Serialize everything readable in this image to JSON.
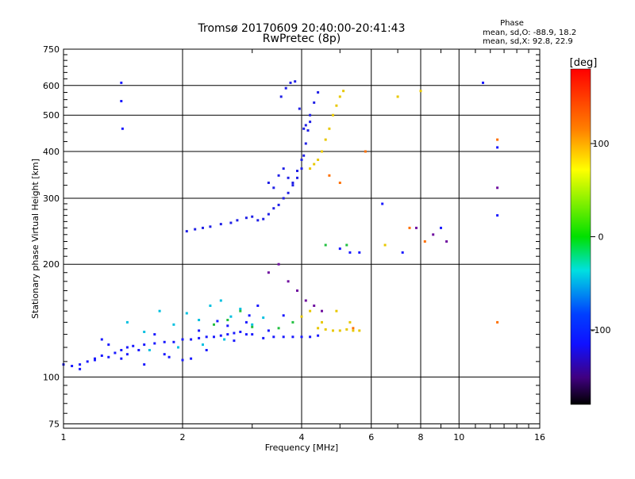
{
  "chart_data": {
    "type": "scatter",
    "title": "Tromsø 20170609 20:40:00-20:41:43",
    "subtitle": "RwPretec (8p)",
    "xlabel": "Frequency [MHz]",
    "ylabel": "Stationary phase Virtual Height [km]",
    "xscale": "log",
    "yscale": "log",
    "xlim": [
      1,
      16
    ],
    "ylim": [
      73,
      750
    ],
    "x_ticks": [
      1,
      2,
      4,
      6,
      8,
      10,
      16
    ],
    "x_tick_labels": [
      "1",
      "2",
      "4",
      "6",
      "8",
      "10",
      "16"
    ],
    "y_ticks": [
      75,
      100,
      200,
      300,
      400,
      500,
      600,
      750
    ],
    "y_tick_labels": [
      "75",
      "100",
      "200",
      "300",
      "400",
      "500",
      "600",
      "750"
    ],
    "grid": true,
    "info": {
      "heading": "Phase",
      "line_o": "mean, sd,O: -88.9, 18.2",
      "line_x": "mean, sd,X:  92.8, 22.9"
    },
    "colorbar": {
      "label": "[deg]",
      "range": [
        -180,
        180
      ],
      "ticks": [
        100,
        0,
        -100
      ],
      "tick_labels": [
        "100",
        "0",
        "-100"
      ]
    },
    "series": [
      {
        "name": "blue-low-E-trace",
        "color": "#1a1aff",
        "x": [
          1.0,
          1.05,
          1.1,
          1.15,
          1.2,
          1.25,
          1.3,
          1.35,
          1.4,
          1.45,
          1.5,
          1.6,
          1.7,
          1.8,
          1.9,
          2.0,
          2.1,
          2.2,
          2.3,
          2.4,
          2.5,
          2.6,
          2.7,
          2.8,
          2.9,
          3.0,
          3.2,
          3.4,
          3.6,
          3.8,
          4.0,
          4.2,
          4.4,
          1.1,
          1.2,
          1.3,
          1.45,
          1.55,
          1.7,
          1.85,
          2.0,
          2.2,
          2.45,
          2.7,
          2.95,
          3.3,
          3.6,
          1.25,
          1.4,
          1.6,
          1.8,
          2.1,
          2.3,
          2.6,
          2.9,
          3.1
        ],
        "values": [
          108,
          107,
          108,
          110,
          112,
          114,
          113,
          116,
          118,
          120,
          121,
          122,
          123,
          124,
          124,
          126,
          126,
          127,
          128,
          128,
          129,
          130,
          131,
          132,
          130,
          130,
          127,
          128,
          128,
          128,
          128,
          128,
          129,
          105,
          111,
          122,
          115,
          118,
          130,
          113,
          111,
          133,
          141,
          125,
          146,
          133,
          146,
          126,
          112,
          108,
          115,
          112,
          118,
          137,
          140,
          155
        ]
      },
      {
        "name": "blue-F-trace",
        "color": "#2020e6",
        "x": [
          2.05,
          2.15,
          2.25,
          2.35,
          2.5,
          2.65,
          2.75,
          2.9,
          3.0,
          3.1,
          3.2,
          3.3,
          3.4,
          3.5,
          3.6,
          3.7,
          3.8,
          3.9,
          4.0,
          4.05,
          4.1,
          4.15,
          4.2,
          3.3,
          3.4,
          3.5,
          3.6,
          3.7,
          3.8,
          3.9,
          4.0,
          3.55,
          3.65,
          3.75,
          3.85,
          3.95,
          4.05,
          4.1,
          4.2,
          4.3,
          4.4
        ],
        "values": [
          245,
          248,
          250,
          252,
          256,
          258,
          262,
          266,
          268,
          262,
          264,
          272,
          282,
          288,
          300,
          310,
          325,
          340,
          360,
          390,
          420,
          455,
          480,
          330,
          320,
          345,
          360,
          340,
          330,
          355,
          380,
          560,
          590,
          610,
          615,
          520,
          460,
          470,
          500,
          540,
          575
        ]
      },
      {
        "name": "cyan-scatter",
        "color": "#00c0e0",
        "x": [
          1.45,
          1.6,
          1.75,
          1.9,
          2.05,
          2.2,
          2.35,
          2.5,
          2.65,
          2.8,
          3.0,
          3.2,
          1.65,
          1.95,
          2.25,
          2.55
        ],
        "values": [
          140,
          132,
          150,
          138,
          148,
          142,
          155,
          160,
          145,
          152,
          138,
          144,
          118,
          120,
          122,
          126
        ]
      },
      {
        "name": "green-scatter",
        "color": "#22c040",
        "x": [
          2.4,
          2.6,
          2.8,
          3.0,
          3.5,
          3.8,
          4.6,
          5.2
        ],
        "values": [
          138,
          142,
          150,
          136,
          135,
          140,
          225,
          225
        ]
      },
      {
        "name": "yellow-orange-X-trace",
        "color": "#e8c800",
        "x": [
          4.2,
          4.3,
          4.4,
          4.5,
          4.6,
          4.7,
          4.8,
          4.9,
          5.0,
          5.1,
          4.4,
          4.6,
          4.8,
          5.0,
          5.2,
          5.4,
          5.6,
          4.0,
          4.2,
          4.5,
          4.9,
          5.3,
          6.5,
          7.0,
          8.0
        ],
        "values": [
          360,
          370,
          380,
          400,
          430,
          460,
          500,
          530,
          560,
          580,
          135,
          134,
          133,
          133,
          134,
          133,
          133,
          145,
          150,
          140,
          150,
          140,
          225,
          560,
          580
        ]
      },
      {
        "name": "orange-red-scatter",
        "color": "#ff7000",
        "x": [
          4.7,
          5.0,
          5.4,
          5.8,
          7.5,
          8.2,
          12.5,
          12.5
        ],
        "values": [
          345,
          330,
          135,
          400,
          250,
          230,
          430,
          140
        ]
      },
      {
        "name": "purple-scatter",
        "color": "#7010a0",
        "x": [
          3.3,
          3.5,
          3.7,
          3.9,
          4.1,
          4.3,
          4.5,
          7.8,
          8.6,
          9.3,
          12.5
        ],
        "values": [
          190,
          200,
          180,
          170,
          160,
          155,
          150,
          250,
          240,
          230,
          320
        ]
      },
      {
        "name": "blue-high-freq",
        "color": "#1a1aff",
        "x": [
          1.4,
          1.4,
          1.41,
          5.0,
          5.3,
          5.6,
          6.4,
          7.2,
          9.0,
          11.5,
          12.5,
          12.5
        ],
        "values": [
          610,
          545,
          460,
          220,
          215,
          215,
          290,
          215,
          250,
          610,
          410,
          270
        ]
      }
    ]
  }
}
